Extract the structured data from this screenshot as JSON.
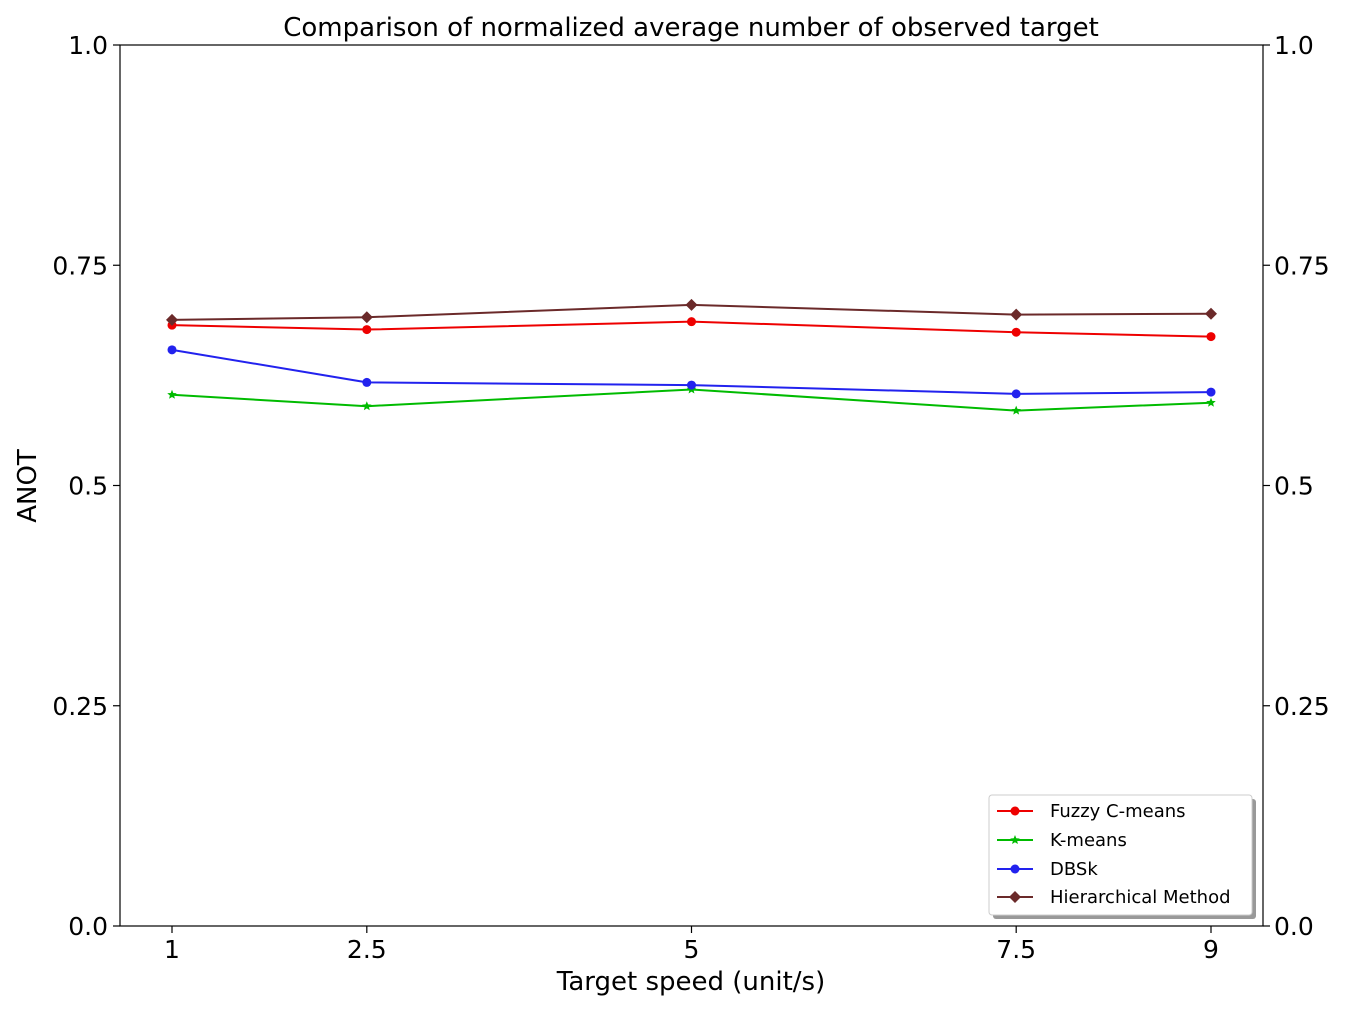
{
  "chart_data": {
    "type": "line",
    "title": "Comparison of normalized average number of observed target",
    "xlabel": "Target speed (unit/s)",
    "ylabel": "ANOT",
    "x": [
      "1",
      "2.5",
      "5",
      "7.5",
      "9"
    ],
    "yticks": [
      "0.0",
      "0.25",
      "0.5",
      "0.75",
      "1.0"
    ],
    "ylim": [
      0,
      1
    ],
    "right_axis": true,
    "grid": false,
    "legend_position": "lower-right",
    "series": [
      {
        "name": "Fuzzy C-means",
        "color": "#ee0000",
        "marker": "circle",
        "values": [
          0.682,
          0.677,
          0.686,
          0.674,
          0.669
        ]
      },
      {
        "name": "K-means",
        "color": "#00bb00",
        "marker": "star",
        "values": [
          0.603,
          0.59,
          0.609,
          0.585,
          0.594
        ]
      },
      {
        "name": "DBSk",
        "color": "#2222ee",
        "marker": "circle",
        "values": [
          0.654,
          0.617,
          0.614,
          0.604,
          0.606
        ]
      },
      {
        "name": "Hierarchical Method",
        "color": "#6b2a2a",
        "marker": "diamond",
        "values": [
          0.688,
          0.691,
          0.705,
          0.694,
          0.695
        ]
      }
    ]
  }
}
